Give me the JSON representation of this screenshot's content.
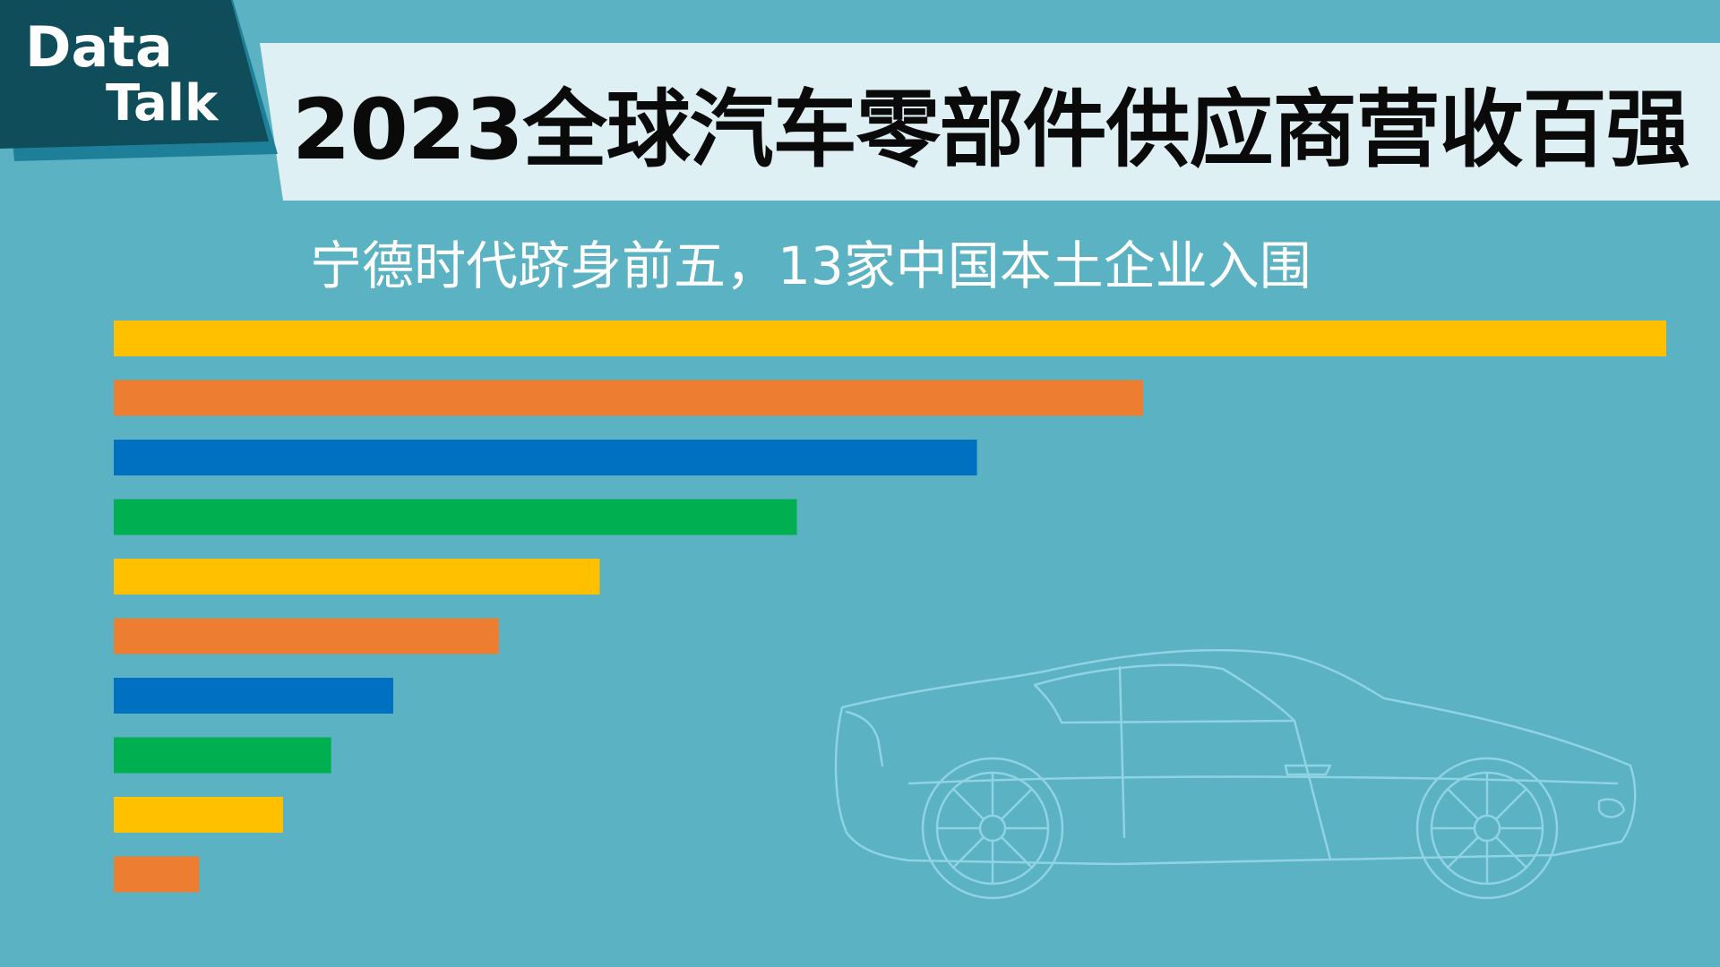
{
  "badge": {
    "line1": "Data",
    "line2": "Talk"
  },
  "title": "2023全球汽车零部件供应商营收百强",
  "subtitle": "宁德时代跻身前五，13家中国本土企业入围",
  "colors": {
    "background": "#5ab2c2",
    "title_band": "#dff0f4",
    "badge": "#0f4d5a",
    "badge_shadow": "#1e8098",
    "yellow": "#ffc000",
    "orange": "#ed7d31",
    "blue": "#0070c0",
    "green": "#00b050",
    "car_outline": "#8fd3e4"
  },
  "chart_data": {
    "type": "bar",
    "orientation": "horizontal",
    "series": [
      {
        "values": [
          100,
          66.3,
          55.6,
          44,
          31.3,
          24.8,
          18,
          14,
          10.9,
          5.5
        ],
        "colors": [
          "#ffc000",
          "#ed7d31",
          "#0070c0",
          "#00b050",
          "#ffc000",
          "#ed7d31",
          "#0070c0",
          "#00b050",
          "#ffc000",
          "#ed7d31"
        ]
      }
    ],
    "xlim": [
      0,
      100
    ],
    "grid": false,
    "legend": "none"
  }
}
